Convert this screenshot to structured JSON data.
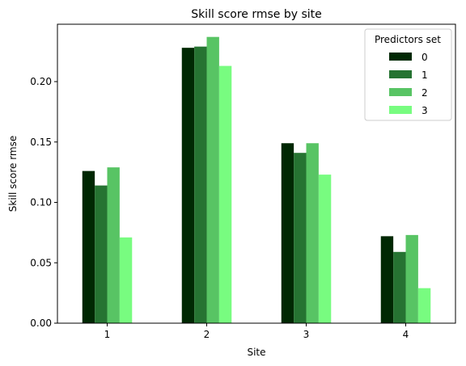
{
  "chart_data": {
    "type": "bar",
    "title": "Skill score rmse by site",
    "xlabel": "Site",
    "ylabel": "Skill score rmse",
    "categories": [
      "1",
      "2",
      "3",
      "4"
    ],
    "ylim": [
      0,
      0.2475
    ],
    "yticks": [
      0.0,
      0.05,
      0.1,
      0.15,
      0.2
    ],
    "ytick_labels": [
      "0.00",
      "0.05",
      "0.10",
      "0.15",
      "0.20"
    ],
    "grid": false,
    "legend": {
      "title": "Predictors set",
      "placement": "top-right"
    },
    "series": [
      {
        "name": "0",
        "color": "#002803",
        "values": [
          0.126,
          0.228,
          0.149,
          0.072
        ]
      },
      {
        "name": "1",
        "color": "#267332",
        "values": [
          0.114,
          0.229,
          0.141,
          0.059
        ]
      },
      {
        "name": "2",
        "color": "#58c464",
        "values": [
          0.129,
          0.237,
          0.149,
          0.073
        ]
      },
      {
        "name": "3",
        "color": "#78fc80",
        "values": [
          0.071,
          0.213,
          0.123,
          0.029
        ]
      }
    ]
  }
}
